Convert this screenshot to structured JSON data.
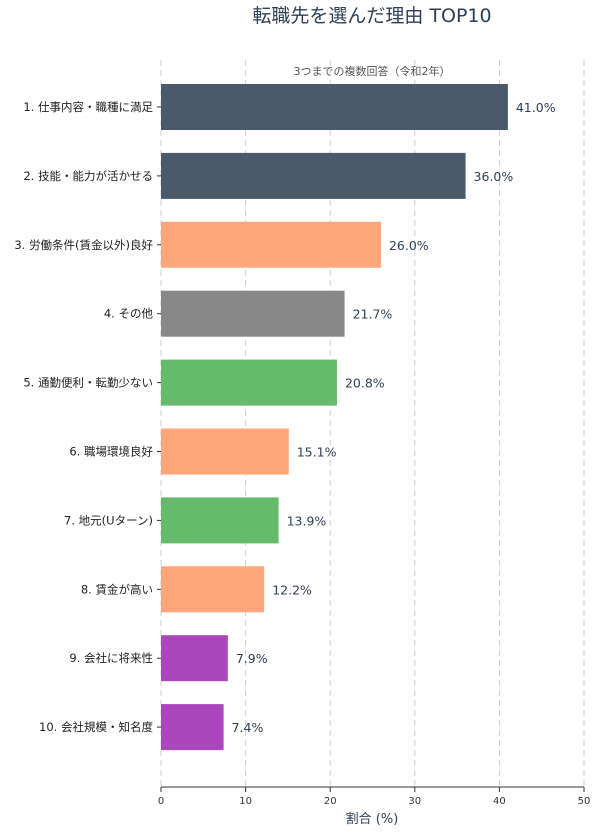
{
  "chart_data": {
    "type": "bar",
    "orientation": "horizontal",
    "title": "転職先を選んだ理由 TOP10",
    "subtitle": "3つまでの複数回答（令和2年）",
    "xlabel": "割合 (%)",
    "ylabel": "",
    "xlim": [
      0,
      50
    ],
    "xticks": [
      "0",
      "10",
      "20",
      "30",
      "40",
      "50"
    ],
    "grid": "vertical-dashed",
    "categories": [
      "1. 仕事内容・職種に満足",
      "2. 技能・能力が活かせる",
      "3. 労働条件(賃金以外)良好",
      "4. その他",
      "5. 通勤便利・転勤少ない",
      "6. 職場環境良好",
      "7. 地元(Uターン)",
      "8. 賃金が高い",
      "9. 会社に将来性",
      "10. 会社規模・知名度"
    ],
    "values": [
      41.0,
      36.0,
      26.0,
      21.7,
      20.8,
      15.1,
      13.9,
      12.2,
      7.9,
      7.4
    ],
    "value_labels": [
      "41.0%",
      "36.0%",
      "26.0%",
      "21.7%",
      "20.8%",
      "15.1%",
      "13.9%",
      "12.2%",
      "7.9%",
      "7.4%"
    ],
    "colors": [
      "#4b5a6a",
      "#4b5a6a",
      "#ffa67a",
      "#888888",
      "#66bb6a",
      "#ffa67a",
      "#66bb6a",
      "#ffa67a",
      "#ab47bc",
      "#ab47bc"
    ],
    "text_color": "#2e3f55"
  }
}
